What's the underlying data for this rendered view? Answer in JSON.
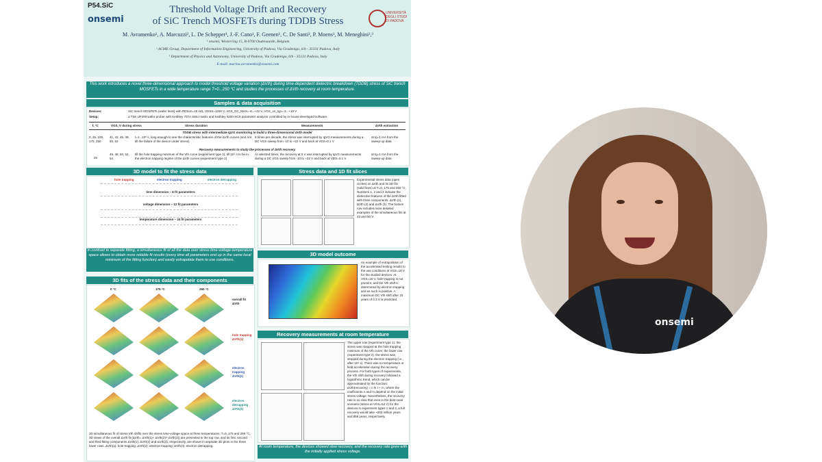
{
  "poster": {
    "code": "P54.SiC",
    "logo": "onsemi",
    "title_line1": "Threshold Voltage Drift and Recovery",
    "title_line2": "of SiC Trench MOSFETs during TDDB Stress",
    "university": "UNIVERSITÀ DEGLI STUDI DI PADOVA",
    "authors": "M. Avramenko¹, A. Marcuzzi², L. De Schepper¹, J.-F. Cano¹, F. Geenen¹, C. De Santi², P. Moens¹, M. Meneghini²,³",
    "aff1": "¹ onsemi, Westerring 15, B-9700 Oudenaarde, Belgium",
    "aff2": "² ACME Group, Department of Information Engineering, University of Padova, Via Gradenigo, 6/b - 35131 Padova, Italy",
    "aff3": "³ Department of Physics and Astronomy, University of Padova, Via Gradenigo, 6/b - 35131 Padova, Italy",
    "email": "E-mail: marina.avramenko@onsemi.com",
    "intro": "This work introduces a novel three-dimensional approach to model threshold voltage variation (ΔVth) during time-dependent dielectric breakdown (TDDB) stress of SiC trench MOSFETs in a wide temperature range T=0...250 °C and studies the processes of ΔVth recovery at room temperature.",
    "sec_samples": "Samples & data acquisition",
    "devices_label": "Devices:",
    "devices_text": "SiC trench MOSFETs (wafer level) with RDSon=15 mΩ, VDSS=1200 V, VGS_DC_MAX=-8...+22 V, VGS_on_typ=-3...+18 V",
    "setup_label": "Setup:",
    "setup_text": "a TSK UF200 wafer prober with Keithley 707A SMU matrix and Keithley 4200-SCS parameter analyzer controlled by in-house developed software",
    "table_headers": [
      "T, °C",
      "VGS, V during stress",
      "Stress duration",
      "Measurements",
      "ΔVth extraction"
    ],
    "table_row1_caption": "TDDB stress with intermediate IgVG monitoring to build a three-dimensional ΔVth model",
    "table_row1": [
      "0, 25, 100, 175, 250",
      "41, 43, 45, 48, 50, 52",
      "t=1...10⁶ s, long enough to see the characteristic features of the ΔVth curves (and not till the failure of the device under stress)",
      "8 times per decade, the stress was interrupted by IgVG measurements during a DC VGS sweep from -10 to +22 V and back at VDS=0.1 V",
      "at Ig=1 mA from the sweep-up data"
    ],
    "table_row2_caption": "Recovery measurements to study the processes of ΔVth recovery",
    "table_row2": [
      "25",
      "45, 48, 50, 52, 54",
      "till the hole trapping minimum of the Vth curve (experiment type 1), till 10⁴ s to be in the electron trapping regime of the ΔVth curves (experiment type 2)",
      "At selected times, the recovery at 0 V was interrupted by IgVG measurements during a DC VGS sweep from -10 to +22 V and back at VDS=0.1 V",
      "at Ig=1 mA from the sweep-up data"
    ],
    "sec_model": "3D model to fit the stress data",
    "model_cols": [
      "hole trapping",
      "electron trapping",
      "electron detrapping"
    ],
    "model_time": "time dimension – 6 fit parameters",
    "model_voltage": "voltage dimension – 12 fit parameters",
    "model_temp": "temperature dimension – 24 fit parameters",
    "model_note": "In contrast to separate fitting, a simultaneous fit of all the data over stress time-voltage-temperature space allows to obtain more reliable fit results (every time all parameters end up in the same local minimum of the fitting function) and easily extrapolate them to use conditions.",
    "sec_3dfits": "3D fits of the stress data and their components",
    "fit_temps": [
      "0 °C",
      "175 °C",
      "250 °C"
    ],
    "fit_labels": [
      "overall fit ΔVth",
      "hole trapping ΔVth(1)",
      "electron trapping ΔVth(2)",
      "electron detrapping ΔVth(3)"
    ],
    "fits_caption": "3D simultaneous fit of stress Vth shifts over the stress time-voltage space at three temperatures: T=0, 175 and 250 °C. 3D views of the overall ΔVth fit (ΔVth= ΔVth(1)+ ΔVth(2)+ ΔVth(3)) are presented in the top row, and its first, second and third fitting components ΔVth(1), ΔVth(2) and ΔVth(3), respectively, are shown in separate 3D plots in the three lower rows. ΔVth(1): hole trapping; ΔVth(2): electron trapping; ΔVth(3): electron detrapping.",
    "sec_slices": "Stress data and 1D fit slices",
    "slices_text": "Experimental stress data (open circles) on ΔVth and its 3D fits (solid lines) at T=0, 175 and 250 °C. Numbers 1, 2 and 3 indicate the distinctive features of the ΔVth fitted with three components: ΔVth (1), ΔVth (2) and ΔVth (3). The bottom row includes more detailed examples of the simultaneous fits at 43 and 50 V.",
    "sec_outcome": "3D model outcome",
    "outcome_text": "An example of extrapolation of the accelerated testing results to the use conditions at VGS=18 V for the studied devices. At VGS=18 V, hole trapping is not present, and the Vth shift is determined by electron trapping and as such is positive. A maximum DC Vth shift after 10 years of 0.3 V is predicted.",
    "sec_recovery": "Recovery measurements at room temperature",
    "recovery_text": "The upper row (experiment type 1): the stress was stopped at the hole trapping minimum of the Vth curve; the lower row (experiment type 2): the stress was stopped during the electron trapping (i.e., after 10⁴ s). There was no temperature or field acceleration during the recovery process. For both types of experiments, the Vth shift during recovery followed a logarithmic trend, which can be approximated by the function: ΔVth(recovery) = n ln t + m, where the coefficients n and m depend on the initial stress voltage. Nevertheless, the recovery rate is so slow that even in the best-case scenario (stress at VGS=54 V) for the devices in experiment types 1 and 2, a full recovery would take ~253 million years and 856 years, respectively.",
    "conclusion": "At room temperature, the devices showed slow recovery, and the recovery rate grew with the initially applied stress voltage."
  },
  "speaker": {
    "shirt_logo": "onsemi"
  },
  "colors": {
    "accent": "#1f8b85",
    "header_bg": "#d9efec",
    "title": "#2a4a78"
  }
}
